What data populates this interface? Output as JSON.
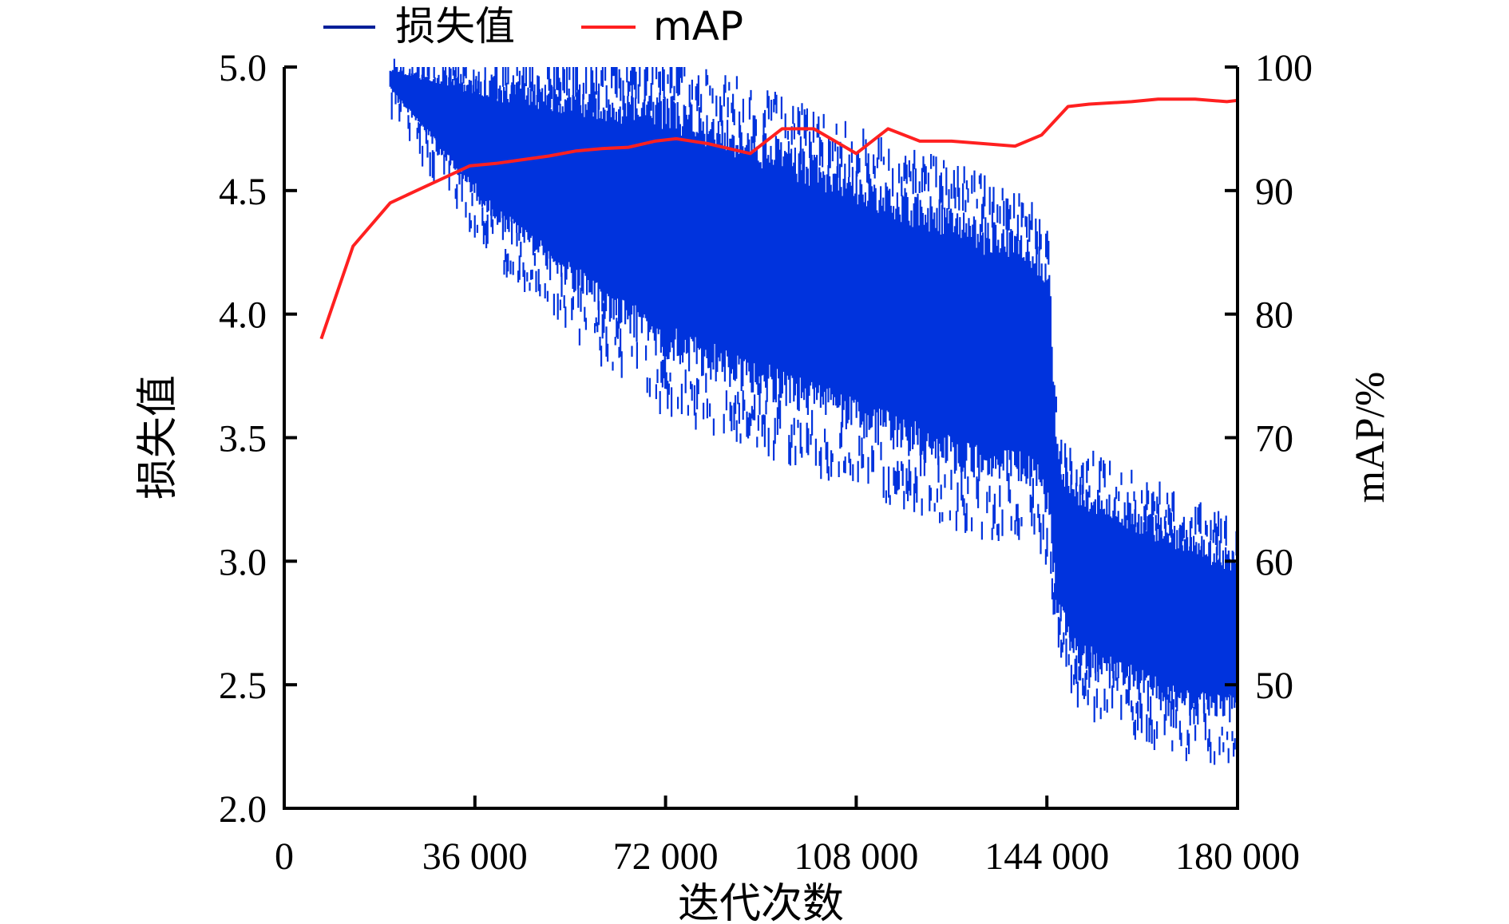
{
  "chart_data": {
    "type": "line",
    "xlabel": "迭代次数",
    "ylabel_left": "损失值",
    "ylabel_right": "mAP/%",
    "xlim": [
      0,
      180000
    ],
    "ylim_left": [
      2.0,
      5.0
    ],
    "ylim_right": [
      40,
      100
    ],
    "x_ticks": [
      0,
      36000,
      72000,
      108000,
      144000,
      180000
    ],
    "x_tick_labels": [
      "0",
      "36 000",
      "72 000",
      "108 000",
      "144 000",
      "180 000"
    ],
    "y_left_ticks": [
      2.0,
      2.5,
      3.0,
      3.5,
      4.0,
      4.5,
      5.0
    ],
    "y_left_tick_labels": [
      "2.0",
      "2.5",
      "3.0",
      "3.5",
      "4.0",
      "4.5",
      "5.0"
    ],
    "y_right_ticks": [
      50,
      60,
      70,
      80,
      90,
      100
    ],
    "y_right_tick_labels": [
      "50",
      "60",
      "70",
      "80",
      "90",
      "100"
    ],
    "legend": {
      "position": "top",
      "entries": [
        "损失值",
        "mAP"
      ]
    },
    "series": [
      {
        "name": "损失值",
        "axis": "left",
        "color": "#0033dd",
        "style": "dense-noisy-band",
        "x": [
          20000,
          30000,
          40000,
          50000,
          60000,
          72000,
          84000,
          96000,
          108000,
          120000,
          132000,
          142000,
          144500,
          146000,
          150000,
          160000,
          170000,
          180000
        ],
        "upper": [
          5.0,
          5.0,
          5.0,
          5.0,
          5.0,
          5.0,
          4.9,
          4.8,
          4.7,
          4.6,
          4.5,
          4.4,
          4.3,
          3.5,
          3.4,
          3.3,
          3.2,
          3.1
        ],
        "lower": [
          4.9,
          4.6,
          4.3,
          4.1,
          3.9,
          3.7,
          3.6,
          3.5,
          3.4,
          3.3,
          3.2,
          3.2,
          3.0,
          2.7,
          2.5,
          2.4,
          2.3,
          2.3
        ]
      },
      {
        "name": "mAP",
        "axis": "right",
        "color": "#ff2020",
        "x": [
          7000,
          13000,
          20000,
          25000,
          30000,
          35000,
          40000,
          45000,
          50000,
          55000,
          60000,
          65000,
          70000,
          74000,
          80000,
          88000,
          94000,
          100000,
          108000,
          114000,
          120000,
          126000,
          132000,
          138000,
          143000,
          148000,
          152000,
          160000,
          165000,
          172000,
          178000,
          180000
        ],
        "values": [
          78,
          85.5,
          89,
          90,
          91,
          92,
          92.2,
          92.5,
          92.8,
          93.2,
          93.4,
          93.5,
          94,
          94.2,
          93.8,
          93,
          95,
          95,
          93,
          95,
          94,
          94,
          93.8,
          93.6,
          94.5,
          96.8,
          97,
          97.2,
          97.4,
          97.4,
          97.2,
          97.3
        ]
      }
    ]
  }
}
